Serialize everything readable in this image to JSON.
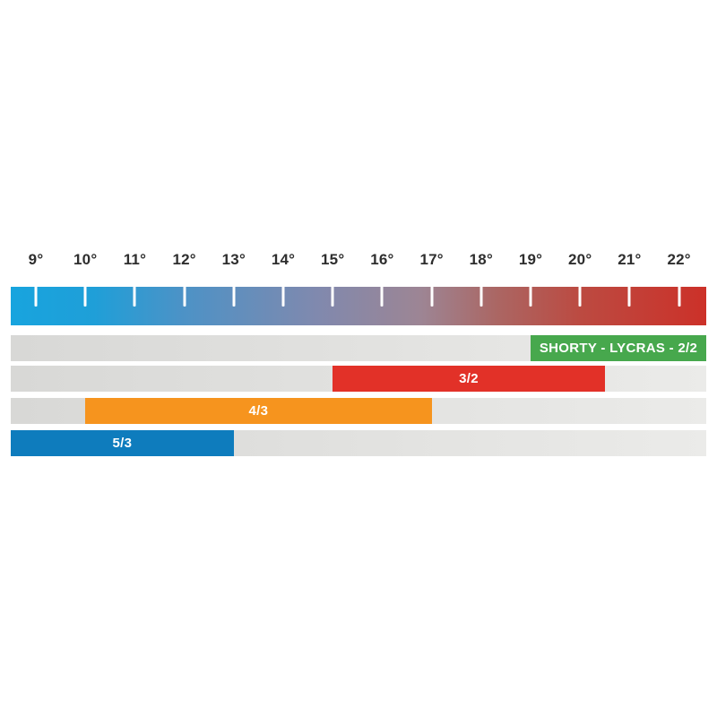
{
  "chart_data": {
    "type": "bar",
    "subtype": "horizontal-temperature-range-chart",
    "title": "",
    "xlabel": "",
    "ylabel": "",
    "legend_position": "none",
    "grid": false,
    "x": {
      "unit": "degrees",
      "tick_values": [
        9,
        10,
        11,
        12,
        13,
        14,
        15,
        16,
        17,
        18,
        19,
        20,
        21,
        22
      ],
      "tick_labels": [
        "9°",
        "10°",
        "11°",
        "12°",
        "13°",
        "14°",
        "15°",
        "16°",
        "17°",
        "18°",
        "19°",
        "20°",
        "21°",
        "22°"
      ],
      "tick_label_color": "#2e2e2e",
      "tick_mark_color": "#ffffff"
    },
    "scale_gradient_stops": [
      {
        "pos": 0,
        "color": "#18a4de"
      },
      {
        "pos": 0.12,
        "color": "#1f9fd8"
      },
      {
        "pos": 0.25,
        "color": "#4d92c6"
      },
      {
        "pos": 0.44,
        "color": "#8089ae"
      },
      {
        "pos": 0.59,
        "color": "#9d8594"
      },
      {
        "pos": 0.7,
        "color": "#ab6663"
      },
      {
        "pos": 0.82,
        "color": "#bc4a41"
      },
      {
        "pos": 1,
        "color": "#cc3129"
      }
    ],
    "track_color_left": "#d8d8d6",
    "track_color_right": "#ebebe9",
    "series": [
      {
        "label": "SHORTY - LYCRAS - 2/2",
        "color": "#47a84d",
        "text_color": "#ffffff",
        "start_temp": 19,
        "end_temp": null
      },
      {
        "label": "3/2",
        "color": "#e23128",
        "text_color": "#ffffff",
        "start_temp": 15,
        "end_temp": 20.5
      },
      {
        "label": "4/3",
        "color": "#f6941e",
        "text_color": "#ffffff",
        "start_temp": 10,
        "end_temp": 17
      },
      {
        "label": "5/3",
        "color": "#0e7cbd",
        "text_color": "#ffffff",
        "start_temp": null,
        "end_temp": 13
      }
    ]
  }
}
